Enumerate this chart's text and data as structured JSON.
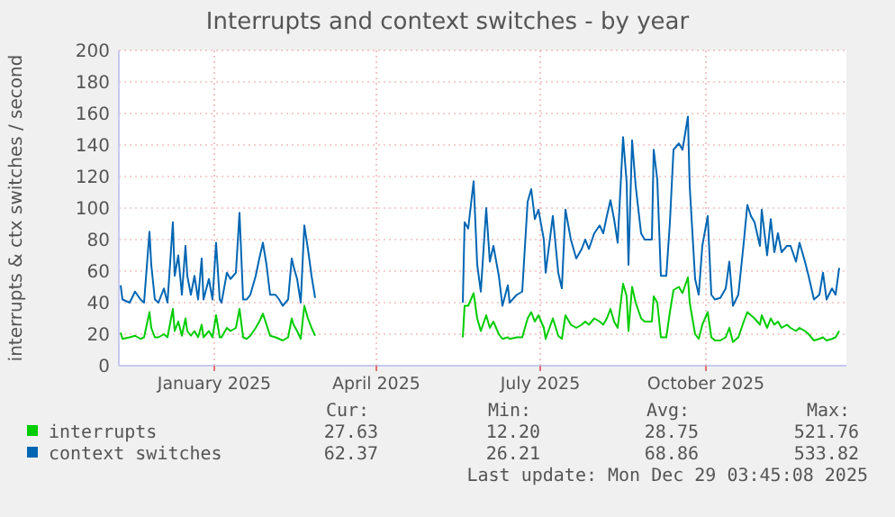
{
  "chart_data": {
    "type": "line",
    "title": "Interrupts and context switches - by year",
    "ylabel": "interrupts & ctx switches / second",
    "x": [
      "2024-11-10",
      "2024-11-11",
      "2024-11-15",
      "2024-11-18",
      "2024-11-21",
      "2024-11-23",
      "2024-11-26",
      "2024-11-27",
      "2024-11-29",
      "2024-12-01",
      "2024-12-04",
      "2024-12-06",
      "2024-12-09",
      "2024-12-10",
      "2024-12-12",
      "2024-12-14",
      "2024-12-16",
      "2024-12-17",
      "2024-12-19",
      "2024-12-21",
      "2024-12-23",
      "2024-12-25",
      "2024-12-26",
      "2024-12-29",
      "2024-12-31",
      "2025-01-02",
      "2025-01-04",
      "2025-01-05",
      "2025-01-08",
      "2025-01-10",
      "2025-01-13",
      "2025-01-15",
      "2025-01-17",
      "2025-01-19",
      "2025-01-21",
      "2025-01-24",
      "2025-01-26",
      "2025-01-28",
      "2025-01-30",
      "2025-02-01",
      "2025-02-04",
      "2025-02-06",
      "2025-02-08",
      "2025-02-11",
      "2025-02-13",
      "2025-02-14",
      "2025-02-16",
      "2025-02-18",
      "2025-02-20",
      "2025-02-22",
      "2025-02-24",
      "2025-02-26",
      "2025-04-01",
      "2025-05-19",
      "2025-05-20",
      "2025-05-22",
      "2025-05-25",
      "2025-05-27",
      "2025-05-29",
      "2025-06-01",
      "2025-06-03",
      "2025-06-05",
      "2025-06-08",
      "2025-06-10",
      "2025-06-13",
      "2025-06-14",
      "2025-06-18",
      "2025-06-21",
      "2025-06-24",
      "2025-06-26",
      "2025-06-28",
      "2025-06-30",
      "2025-07-03",
      "2025-07-04",
      "2025-07-08",
      "2025-07-11",
      "2025-07-13",
      "2025-07-15",
      "2025-07-18",
      "2025-07-21",
      "2025-07-24",
      "2025-07-26",
      "2025-07-28",
      "2025-07-31",
      "2025-08-03",
      "2025-08-05",
      "2025-08-07",
      "2025-08-09",
      "2025-08-11",
      "2025-08-13",
      "2025-08-16",
      "2025-08-18",
      "2025-08-19",
      "2025-08-21",
      "2025-08-23",
      "2025-08-26",
      "2025-08-28",
      "2025-09-01",
      "2025-09-02",
      "2025-09-04",
      "2025-09-06",
      "2025-09-09",
      "2025-09-11",
      "2025-09-13",
      "2025-09-16",
      "2025-09-18",
      "2025-09-21",
      "2025-09-22",
      "2025-09-25",
      "2025-09-27",
      "2025-09-29",
      "2025-10-02",
      "2025-10-04",
      "2025-10-06",
      "2025-10-09",
      "2025-10-12",
      "2025-10-14",
      "2025-10-16",
      "2025-10-19",
      "2025-10-22",
      "2025-10-24",
      "2025-10-26",
      "2025-10-28",
      "2025-10-31",
      "2025-11-01",
      "2025-11-04",
      "2025-11-06",
      "2025-11-08",
      "2025-11-10",
      "2025-11-12",
      "2025-11-15",
      "2025-11-17",
      "2025-11-20",
      "2025-11-22",
      "2025-11-25",
      "2025-11-27",
      "2025-11-30",
      "2025-12-03",
      "2025-12-05",
      "2025-12-07",
      "2025-12-10",
      "2025-12-12",
      "2025-12-14"
    ],
    "series": [
      {
        "name": "interrupts",
        "color": "#00cc00",
        "values": [
          21,
          17,
          18,
          19,
          17,
          18,
          34,
          24,
          18,
          18,
          20,
          18,
          36,
          22,
          28,
          19,
          30,
          22,
          19,
          22,
          18,
          26,
          18,
          22,
          18,
          32,
          18,
          18,
          24,
          22,
          24,
          36,
          18,
          17,
          19,
          24,
          28,
          33,
          26,
          19,
          18,
          17,
          16,
          18,
          30,
          26,
          22,
          17,
          38,
          30,
          24,
          19,
          null,
          18,
          38,
          38,
          46,
          30,
          22,
          32,
          24,
          28,
          20,
          17,
          18,
          17,
          18,
          18,
          30,
          34,
          28,
          32,
          24,
          17,
          30,
          19,
          17,
          32,
          26,
          24,
          26,
          28,
          26,
          30,
          28,
          26,
          30,
          36,
          28,
          24,
          52,
          44,
          22,
          50,
          40,
          30,
          28,
          28,
          44,
          40,
          18,
          18,
          34,
          48,
          50,
          46,
          56,
          40,
          20,
          17,
          26,
          34,
          18,
          16,
          16,
          18,
          24,
          15,
          18,
          28,
          34,
          32,
          30,
          26,
          32,
          24,
          30,
          26,
          28,
          24,
          26,
          24,
          22,
          24,
          22,
          20,
          16,
          17,
          18,
          16,
          17,
          18,
          22
        ]
      },
      {
        "name": "context switches",
        "color": "#0066b3",
        "values": [
          51,
          42,
          40,
          47,
          42,
          40,
          85,
          64,
          42,
          40,
          49,
          40,
          91,
          57,
          70,
          45,
          76,
          57,
          45,
          57,
          42,
          68,
          42,
          55,
          42,
          78,
          42,
          40,
          59,
          55,
          59,
          97,
          42,
          42,
          45,
          57,
          68,
          78,
          64,
          45,
          45,
          42,
          38,
          42,
          68,
          63,
          55,
          40,
          89,
          74,
          57,
          43,
          null,
          40,
          91,
          87,
          117,
          64,
          47,
          100,
          66,
          76,
          57,
          38,
          51,
          40,
          45,
          47,
          104,
          112,
          93,
          99,
          80,
          59,
          95,
          59,
          49,
          99,
          80,
          68,
          74,
          80,
          74,
          84,
          89,
          84,
          95,
          105,
          93,
          78,
          145,
          116,
          64,
          143,
          114,
          84,
          80,
          80,
          137,
          118,
          57,
          57,
          91,
          137,
          141,
          137,
          158,
          114,
          55,
          45,
          76,
          95,
          45,
          42,
          43,
          49,
          66,
          38,
          45,
          78,
          102,
          95,
          91,
          76,
          99,
          70,
          93,
          72,
          84,
          72,
          76,
          76,
          66,
          78,
          66,
          57,
          42,
          45,
          59,
          42,
          49,
          45,
          62
        ]
      }
    ],
    "xlim": [
      "2024-11-09",
      "2025-12-18"
    ],
    "xticks": [
      {
        "value": "2025-01-01",
        "label": "January 2025"
      },
      {
        "value": "2025-04-01",
        "label": "April 2025"
      },
      {
        "value": "2025-07-01",
        "label": "July 2025"
      },
      {
        "value": "2025-10-01",
        "label": "October 2025"
      }
    ],
    "ylim": [
      0,
      200
    ],
    "yticks": [
      0,
      20,
      40,
      60,
      80,
      100,
      120,
      140,
      160,
      180,
      200
    ],
    "grid": true,
    "legend": "bottom",
    "line_style": "solid",
    "marker": "none",
    "annotations": [
      "Cur:",
      "Min:",
      "Avg:",
      "Max:",
      "27.63",
      "12.20",
      "28.75",
      "521.76",
      "62.37",
      "26.21",
      "68.86",
      "533.82",
      "Last update: Mon Dec 29 03:45:08 2025"
    ]
  }
}
